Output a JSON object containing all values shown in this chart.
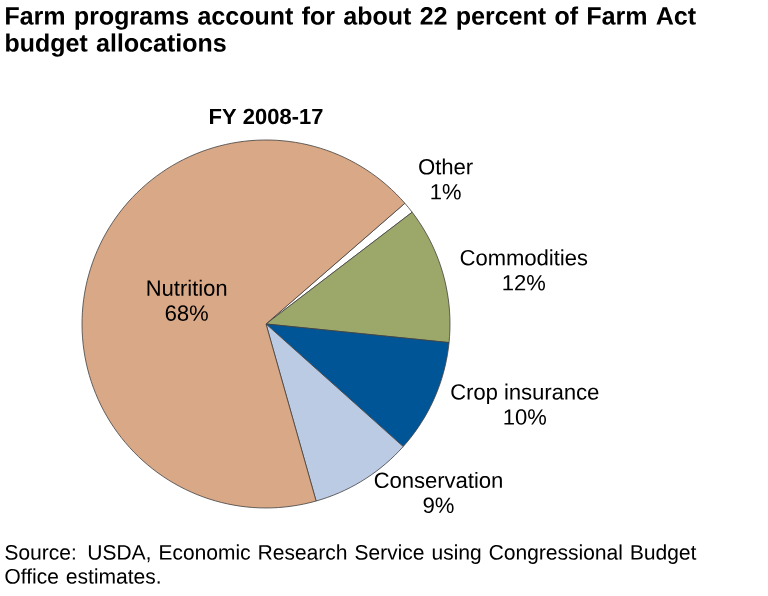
{
  "chart_data": {
    "type": "pie",
    "title": "Farm programs account for about 22 percent of Farm Act budget allocations",
    "subtitle": "FY 2008-17",
    "categories": [
      "Other",
      "Commodities",
      "Crop insurance",
      "Conservation",
      "Nutrition"
    ],
    "values": [
      1,
      12,
      10,
      9,
      68
    ],
    "value_labels": [
      "1%",
      "12%",
      "10%",
      "9%",
      "68%"
    ],
    "colors": [
      "#ffffff",
      "#9ca86a",
      "#005596",
      "#bccbe4",
      "#d9a886"
    ],
    "annotations": [
      "Source: USDA, Economic Research Service using Congressional Budget Office estimates."
    ]
  }
}
